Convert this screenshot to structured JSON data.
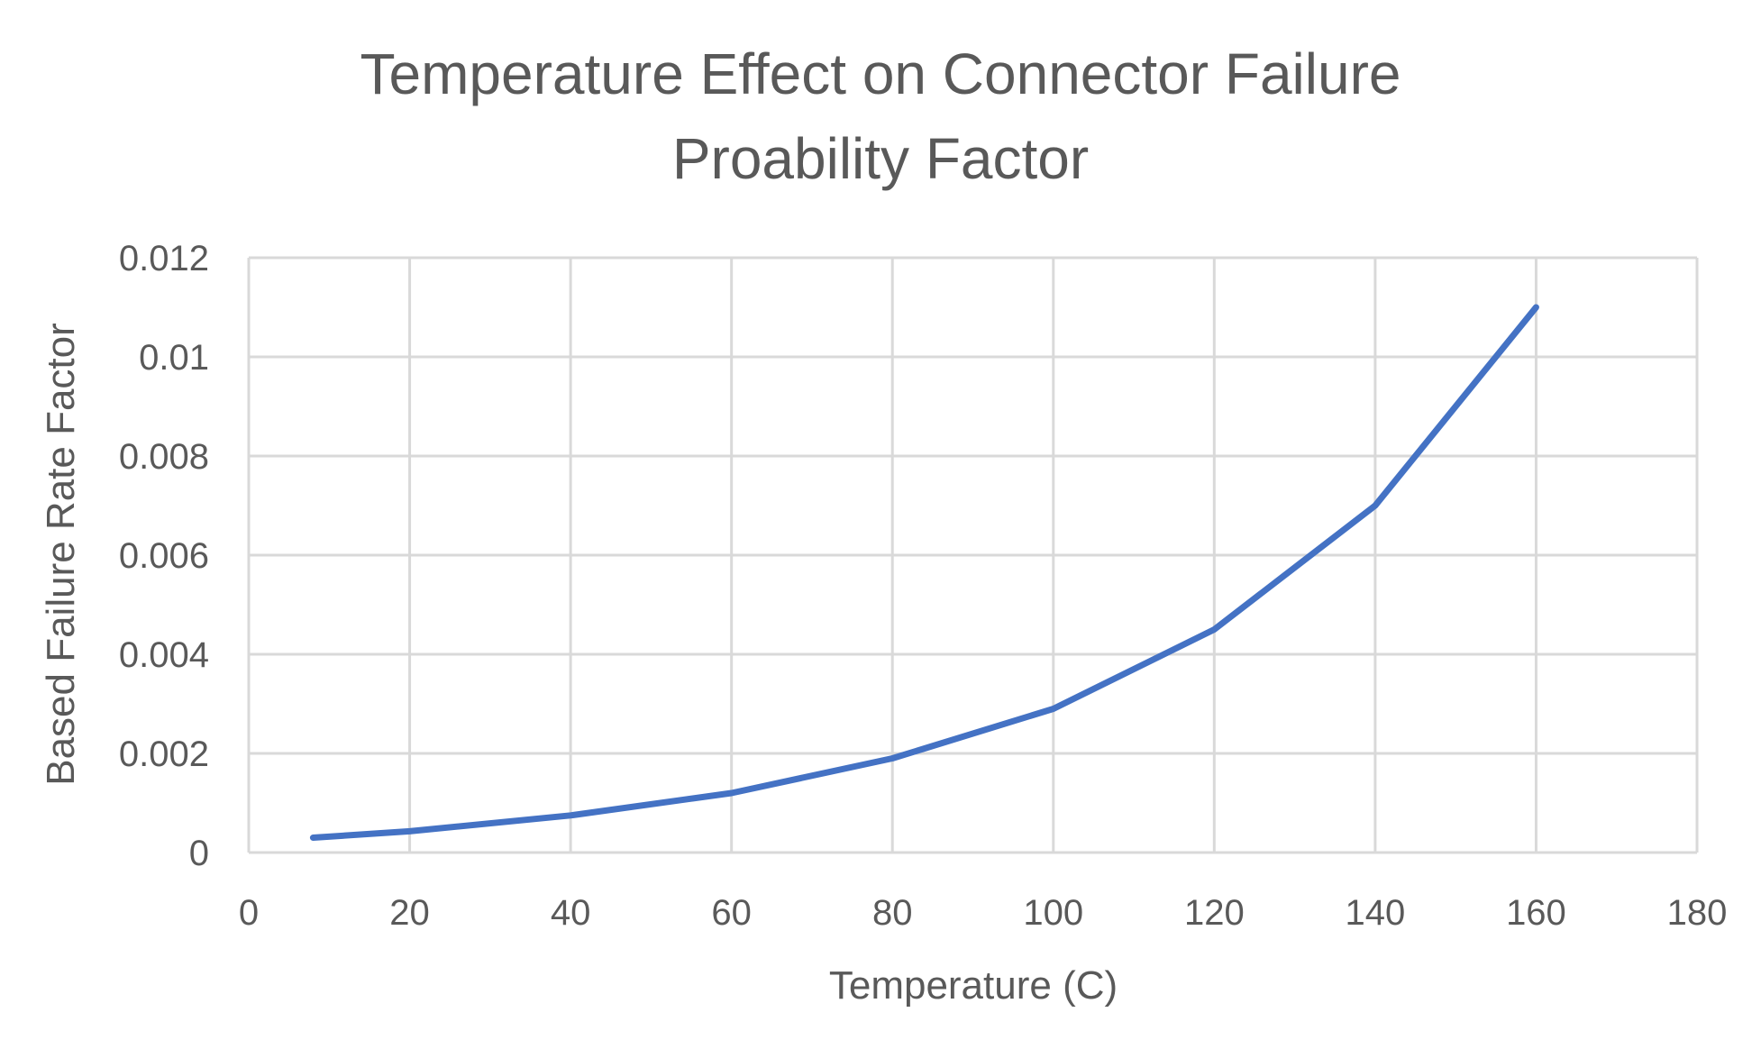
{
  "chart_data": {
    "type": "line",
    "title_lines": [
      "Temperature Effect on Connector Failure",
      "Proability Factor"
    ],
    "xlabel": "Temperature (C)",
    "ylabel": "Based Failure Rate Factor",
    "xlim": [
      0,
      180
    ],
    "ylim": [
      0,
      0.012
    ],
    "x_ticks": [
      "0",
      "20",
      "40",
      "60",
      "80",
      "100",
      "120",
      "140",
      "160",
      "180"
    ],
    "y_ticks": [
      "0",
      "0.002",
      "0.004",
      "0.006",
      "0.008",
      "0.01",
      "0.012"
    ],
    "grid": true,
    "legend": "none",
    "series": [
      {
        "color": "#4472c4",
        "x": [
          8,
          20,
          40,
          60,
          80,
          100,
          120,
          140,
          160
        ],
        "y": [
          0.0003,
          0.00043,
          0.00075,
          0.0012,
          0.0019,
          0.0029,
          0.0045,
          0.007,
          0.011
        ]
      }
    ]
  }
}
